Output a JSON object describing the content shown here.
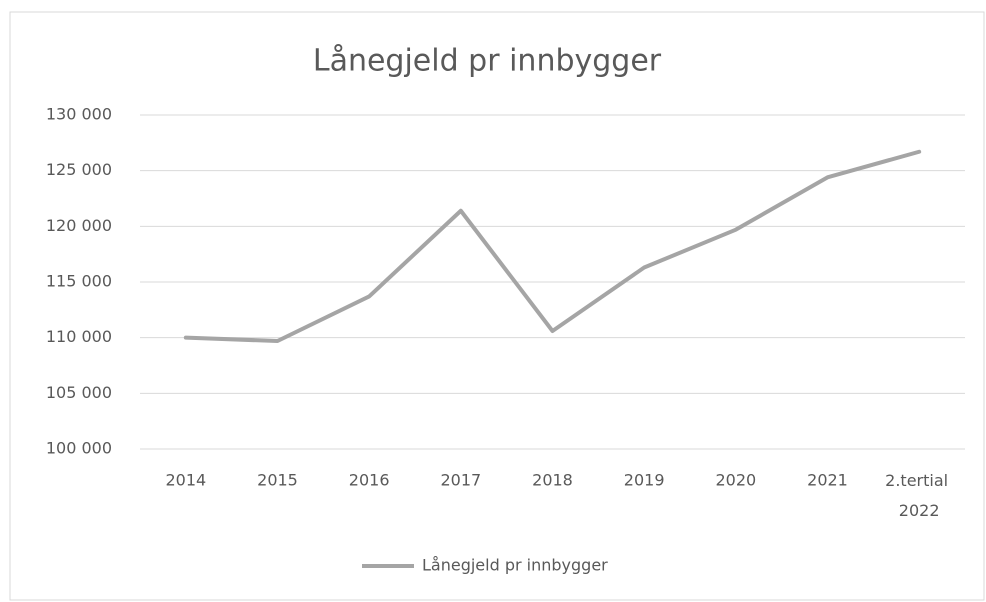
{
  "chart_data": {
    "type": "line",
    "title": "Lånegjeld pr innbygger",
    "categories": [
      "2014",
      "2015",
      "2016",
      "2017",
      "2018",
      "2019",
      "2020",
      "2021",
      "2.tertial 2022"
    ],
    "series": [
      {
        "name": "Lånegjeld pr innbygger",
        "color": "#a5a5a5",
        "values": [
          110000,
          109700,
          113700,
          121400,
          110600,
          116300,
          119700,
          124400,
          126700
        ]
      }
    ],
    "ylim": [
      100000,
      130000
    ],
    "yticks": [
      {
        "value": 100000,
        "label": "100 000"
      },
      {
        "value": 105000,
        "label": "105 000"
      },
      {
        "value": 110000,
        "label": "110 000"
      },
      {
        "value": 115000,
        "label": "115 000"
      },
      {
        "value": 120000,
        "label": "120 000"
      },
      {
        "value": 125000,
        "label": "125 000"
      },
      {
        "value": 130000,
        "label": "130 000"
      }
    ],
    "grid": true,
    "legend": "bottom"
  }
}
